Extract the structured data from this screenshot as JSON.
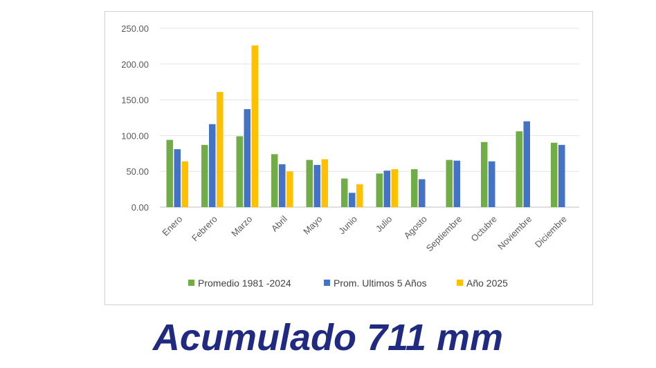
{
  "caption": "Acumulado 711 mm",
  "chart_data": {
    "type": "bar",
    "categories": [
      "Enero",
      "Febrero",
      "Marzo",
      "Abril",
      "Mayo",
      "Junio",
      "Julio",
      "Agosto",
      "Septiembre",
      "Octubre",
      "Noviembre",
      "Diciembre"
    ],
    "series": [
      {
        "name": "Promedio 1981 -2024",
        "color": "#70ad47",
        "values": [
          94,
          87,
          99,
          74,
          66,
          40,
          47,
          53,
          66,
          91,
          106,
          90
        ]
      },
      {
        "name": "Prom. Ultimos 5 Años",
        "color": "#4472c4",
        "values": [
          81,
          116,
          137,
          60,
          59,
          20,
          51,
          39,
          65,
          64,
          120,
          87
        ]
      },
      {
        "name": "Año 2025",
        "color": "#ffc000",
        "values": [
          64,
          161,
          226,
          50,
          67,
          32,
          53,
          null,
          null,
          null,
          null,
          null
        ]
      }
    ],
    "yticks": [
      "0.00",
      "50.00",
      "100.00",
      "150.00",
      "200.00",
      "250.00"
    ],
    "ylim": [
      0,
      250
    ],
    "grid": true,
    "legend": "bottom"
  }
}
